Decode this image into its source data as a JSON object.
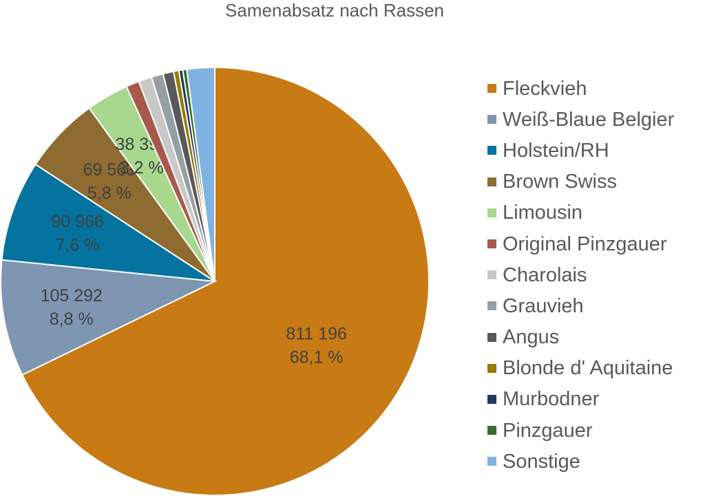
{
  "chart_data": {
    "type": "pie",
    "title": "Samenabsatz nach Rassen",
    "legend_position": "right",
    "slices": [
      {
        "name": "Fleckvieh",
        "value": 811196,
        "value_label": "811 196",
        "percent_label": "68,1 %",
        "percent": 68.1,
        "color": "#C87A14"
      },
      {
        "name": "Weiß-Blaue Belgier",
        "value": 105292,
        "value_label": "105 292",
        "percent_label": "8,8 %",
        "percent": 8.8,
        "color": "#7F96B2"
      },
      {
        "name": "Holstein/RH",
        "value": 90966,
        "value_label": "90 966",
        "percent_label": "7,6 %",
        "percent": 7.6,
        "color": "#0473A0"
      },
      {
        "name": "Brown Swiss",
        "value": 69563,
        "value_label": "69 563",
        "percent_label": "5,8 %",
        "percent": 5.8,
        "color": "#8E6B30"
      },
      {
        "name": "Limousin",
        "value": 38398,
        "value_label": "38 398",
        "percent_label": "3,2 %",
        "percent": 3.2,
        "color": "#A8D88E"
      },
      {
        "name": "Original Pinzgauer",
        "value": 11900,
        "percent": 1.0,
        "color": "#A85A4A"
      },
      {
        "name": "Charolais",
        "value": 11900,
        "percent": 1.0,
        "color": "#C8C8C8"
      },
      {
        "name": "Grauvieh",
        "value": 10700,
        "percent": 0.9,
        "color": "#959FA6"
      },
      {
        "name": "Angus",
        "value": 9500,
        "percent": 0.8,
        "color": "#595959"
      },
      {
        "name": "Blonde d' Aquitaine",
        "value": 4800,
        "percent": 0.4,
        "color": "#9A7A00"
      },
      {
        "name": "Murbodner",
        "value": 3600,
        "percent": 0.3,
        "color": "#203864"
      },
      {
        "name": "Pinzgauer",
        "value": 3600,
        "percent": 0.3,
        "color": "#3A6B2A"
      },
      {
        "name": "Sonstige",
        "value": 25000,
        "percent": 2.1,
        "color": "#7EB3E4"
      }
    ]
  }
}
